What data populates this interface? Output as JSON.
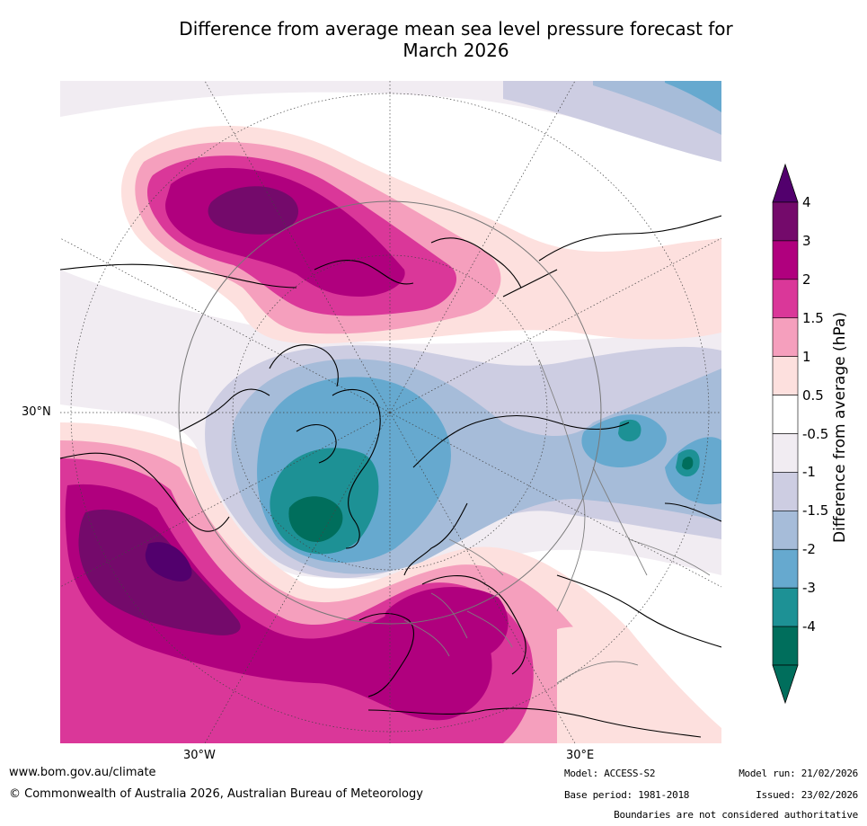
{
  "title_line1": "Difference from average mean sea level pressure forecast for",
  "title_line2": "March 2026",
  "map": {
    "lat_label": "30°N",
    "lon_label_west": "30°W",
    "lon_label_east": "30°E"
  },
  "colorbar": {
    "title": "Difference from average (hPa)",
    "ticks": [
      "4",
      "3",
      "2",
      "1.5",
      "1",
      "0.5",
      "-0.5",
      "-1",
      "-1.5",
      "-2",
      "-3",
      "-4"
    ],
    "colors": [
      "#740a6b",
      "#b0007e",
      "#da3799",
      "#f59fbd",
      "#fde0de",
      "#ffffff",
      "#f1ecf2",
      "#cdcde2",
      "#a6bcd9",
      "#66a9cf",
      "#1d9195",
      "#006e5c"
    ],
    "over_color": "#52006d",
    "under_color": "#006e5c"
  },
  "footer": {
    "url": "www.bom.gov.au/climate",
    "copyright": "© Commonwealth of Australia 2026, Australian Bureau of Meteorology",
    "model": "Model: ACCESS-S2",
    "base_period": "Base period: 1981-2018",
    "model_run": "Model run: 21/02/2026",
    "issued": "Issued: 23/02/2026",
    "disclaimer": "Boundaries are not considered authoritative"
  }
}
